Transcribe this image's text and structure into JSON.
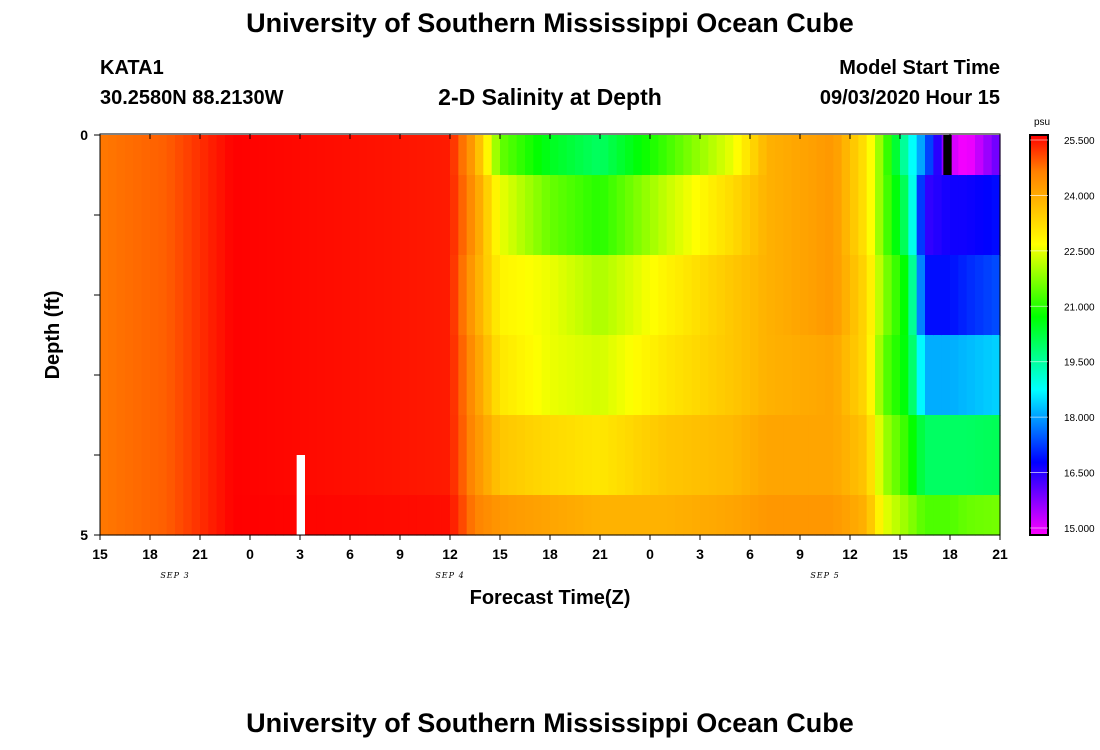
{
  "header": {
    "title": "University of Southern Mississippi Ocean Cube",
    "station_id": "KATA1",
    "station_coords": "30.2580N 88.2130W",
    "subtitle": "2-D Salinity at Depth",
    "model_start_label": "Model Start Time",
    "model_start_value": "09/03/2020 Hour 15"
  },
  "footer": {
    "title": "University of Southern Mississippi Ocean Cube"
  },
  "chart_data": {
    "type": "heatmap",
    "title": "2-D Salinity at Depth",
    "xlabel": "Forecast Time(Z)",
    "ylabel": "Depth (ft)",
    "y_ticks": [
      "0",
      "5"
    ],
    "ylim": [
      0,
      5
    ],
    "x_ticks": [
      "15",
      "18",
      "21",
      "0",
      "3",
      "6",
      "9",
      "12",
      "15",
      "18",
      "21",
      "0",
      "3",
      "6",
      "9",
      "12",
      "15",
      "18",
      "21"
    ],
    "x_hours_range": [
      0,
      54
    ],
    "day_labels": [
      {
        "label": "SEP 3",
        "hour": 4.5
      },
      {
        "label": "SEP 4",
        "hour": 21
      },
      {
        "label": "SEP 5",
        "hour": 43.5
      }
    ],
    "colorbar": {
      "unit": "psu",
      "min": 15.0,
      "max": 25.5,
      "tick_labels": [
        "25.500",
        "24.000",
        "22.500",
        "21.000",
        "19.500",
        "18.000",
        "16.500",
        "15.000"
      ],
      "colors": [
        "#ff00ff",
        "#8000ff",
        "#0000ff",
        "#0080ff",
        "#00ffff",
        "#00ff80",
        "#00ff00",
        "#80ff00",
        "#ffff00",
        "#ffc000",
        "#ff8000",
        "#ff0000"
      ]
    },
    "layer_bounds_ft": [
      0,
      0.5,
      1.5,
      2.5,
      3.5,
      4.5,
      5.0
    ],
    "salinity_profiles": [
      {
        "hour": 0,
        "layers": [
          24.6,
          24.6,
          24.6,
          24.6,
          24.6,
          24.6
        ]
      },
      {
        "hour": 4,
        "layers": [
          24.8,
          24.8,
          24.8,
          24.8,
          24.8,
          24.8
        ]
      },
      {
        "hour": 8,
        "layers": [
          25.5,
          25.5,
          25.5,
          25.5,
          25.5,
          25.5
        ]
      },
      {
        "hour": 21,
        "layers": [
          25.3,
          25.3,
          25.3,
          25.3,
          25.3,
          25.4
        ]
      },
      {
        "hour": 22.5,
        "layers": [
          24.0,
          24.2,
          24.0,
          24.2,
          24.3,
          24.5
        ]
      },
      {
        "hour": 24,
        "layers": [
          21.5,
          22.5,
          22.8,
          23.0,
          23.5,
          24.2
        ]
      },
      {
        "hour": 27,
        "layers": [
          20.5,
          21.5,
          22.5,
          22.5,
          23.2,
          24.0
        ]
      },
      {
        "hour": 30,
        "layers": [
          20.0,
          21.0,
          22.0,
          22.3,
          23.0,
          23.8
        ]
      },
      {
        "hour": 34,
        "layers": [
          21.2,
          22.2,
          22.8,
          23.0,
          23.5,
          23.8
        ]
      },
      {
        "hour": 38,
        "layers": [
          22.5,
          23.2,
          23.5,
          23.5,
          23.7,
          24.0
        ]
      },
      {
        "hour": 40,
        "layers": [
          23.8,
          23.8,
          23.8,
          23.8,
          24.0,
          24.2
        ]
      },
      {
        "hour": 44,
        "layers": [
          24.2,
          24.2,
          24.2,
          24.0,
          24.0,
          24.2
        ]
      },
      {
        "hour": 46,
        "layers": [
          23.0,
          23.0,
          23.2,
          23.2,
          23.5,
          23.8
        ]
      },
      {
        "hour": 47,
        "layers": [
          21.5,
          21.5,
          21.8,
          21.5,
          22.0,
          22.5
        ]
      },
      {
        "hour": 48.5,
        "layers": [
          19.2,
          19.8,
          20.5,
          20.5,
          21.0,
          21.8
        ]
      },
      {
        "hour": 49.5,
        "layers": [
          17.8,
          16.5,
          17.0,
          18.2,
          20.0,
          21.3
        ]
      },
      {
        "hour": 51,
        "layers": [
          15.4,
          16.8,
          17.0,
          18.2,
          20.0,
          21.3
        ]
      },
      {
        "hour": 52,
        "layers": [
          15.0,
          16.8,
          17.2,
          18.3,
          20.0,
          21.5
        ]
      },
      {
        "hour": 54,
        "layers": [
          16.2,
          17.0,
          17.5,
          18.5,
          20.1,
          21.6
        ]
      }
    ],
    "data_gaps": [
      {
        "hour_start": 11.8,
        "hour_end": 12.3,
        "depth_start": 4.0,
        "depth_end": 5.0,
        "color": "#ffffff"
      },
      {
        "hour_start": 50.6,
        "hour_end": 51.1,
        "depth_start": 0.0,
        "depth_end": 0.5,
        "color": "#000000"
      }
    ]
  }
}
